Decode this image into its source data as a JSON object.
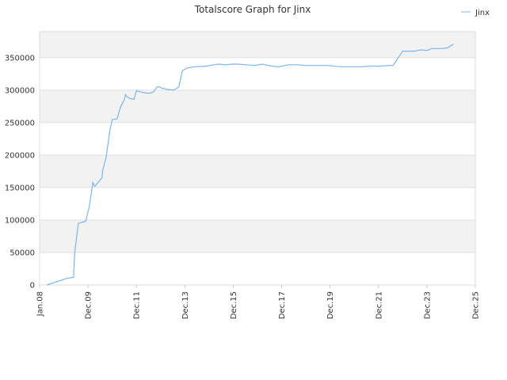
{
  "chart_data": {
    "type": "line",
    "title": "Totalscore Graph for Jinx",
    "xlabel": "",
    "ylabel": "",
    "x_tick_labels": [
      "Jan.08",
      "Dec.09",
      "Dec.11",
      "Dec.13",
      "Dec.15",
      "Dec.17",
      "Dec.19",
      "Dec.21",
      "Dec.23",
      "Dec.25"
    ],
    "y_tick_labels": [
      "0",
      "50000",
      "100000",
      "150000",
      "200000",
      "250000",
      "300000",
      "350000"
    ],
    "ylim": [
      0,
      390000
    ],
    "xlim": [
      2008.0,
      2026.0
    ],
    "grid": true,
    "legend_position": "top-right",
    "colors": {
      "line": "#7cb5ec",
      "band": "#f2f2f2",
      "grid": "#e0e0e0"
    },
    "series": [
      {
        "name": "Jinx",
        "x": [
          2008.3,
          2009.1,
          2009.4,
          2009.45,
          2009.6,
          2009.9,
          2010.05,
          2010.15,
          2010.2,
          2010.27,
          2010.32,
          2010.35,
          2010.58,
          2010.6,
          2010.75,
          2010.9,
          2011.0,
          2011.1,
          2011.2,
          2011.35,
          2011.5,
          2011.55,
          2011.6,
          2011.75,
          2011.9,
          2012.0,
          2012.1,
          2012.2,
          2012.3,
          2012.55,
          2012.7,
          2012.85,
          2012.95,
          2013.0,
          2013.05,
          2013.3,
          2013.55,
          2013.75,
          2013.9,
          2014.1,
          2014.4,
          2014.9,
          2015.2,
          2015.4,
          2015.7,
          2015.95,
          2016.2,
          2016.5,
          2016.9,
          2017.2,
          2017.3,
          2017.6,
          2017.9,
          2018.3,
          2018.7,
          2018.95,
          2019.4,
          2019.9,
          2020.4,
          2020.8,
          2021.3,
          2021.7,
          2022.1,
          2022.5,
          2022.58,
          2022.6,
          2023.0,
          2023.5,
          2023.6,
          2023.8,
          2024.0,
          2024.2,
          2024.4,
          2024.6,
          2024.85,
          2025.1
        ],
        "values": [
          0,
          10000,
          12000,
          50000,
          95000,
          98000,
          120000,
          145000,
          158000,
          152000,
          153000,
          155000,
          165000,
          175000,
          197000,
          237000,
          255000,
          255000,
          256000,
          275000,
          285000,
          293000,
          290000,
          287000,
          286000,
          299000,
          298000,
          297000,
          296000,
          295000,
          297000,
          305000,
          305000,
          304000,
          303000,
          301000,
          300000,
          305000,
          330000,
          334000,
          336000,
          337000,
          339000,
          340000,
          339000,
          340000,
          340000,
          339000,
          338000,
          340000,
          339000,
          337000,
          336000,
          339000,
          339000,
          338000,
          338000,
          338000,
          336000,
          336000,
          336000,
          337000,
          337000,
          338000,
          338000,
          338000,
          360000,
          360000,
          361000,
          362000,
          361000,
          364000,
          364000,
          364000,
          365000,
          371000
        ]
      }
    ]
  }
}
